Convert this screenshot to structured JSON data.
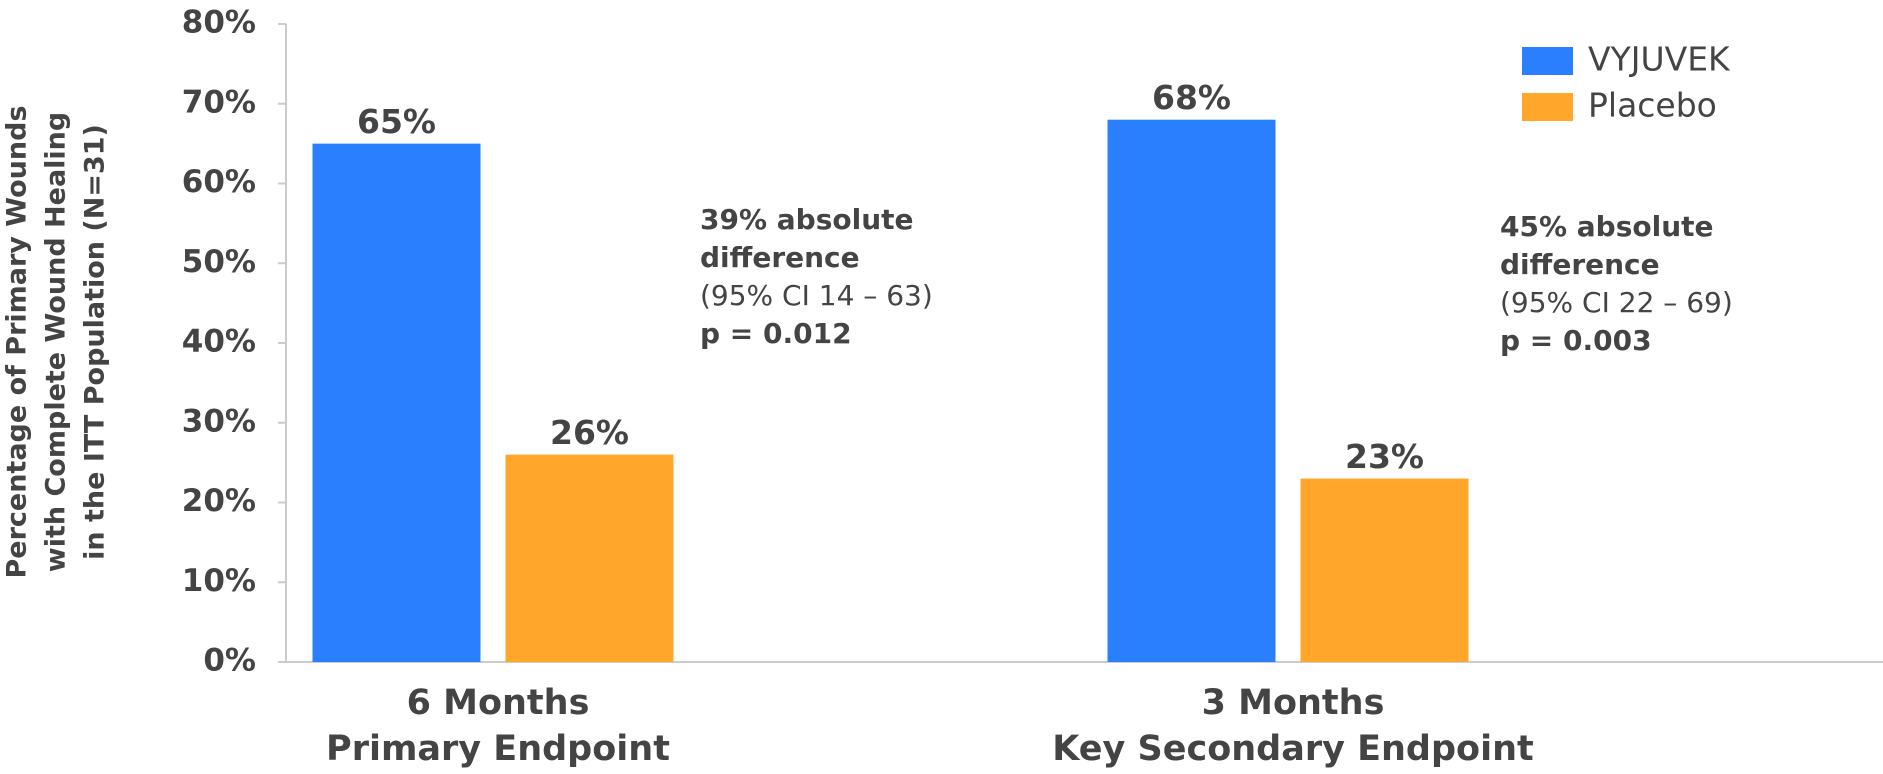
{
  "chart_data": {
    "type": "bar",
    "ylabel": [
      "Percentage of Primary Wounds",
      "with Complete Wound Healing",
      "in the ITT Population (N=31)"
    ],
    "categories": [
      [
        "6 Months",
        "Primary Endpoint"
      ],
      [
        "3 Months",
        "Key Secondary Endpoint"
      ]
    ],
    "series": [
      {
        "name": "VYJUVEK",
        "color": "#2a7fff",
        "values": [
          65,
          68
        ],
        "value_labels": [
          "65%",
          "68%"
        ]
      },
      {
        "name": "Placebo",
        "color": "#ffa62b",
        "values": [
          26,
          23
        ],
        "value_labels": [
          "26%",
          "23%"
        ]
      }
    ],
    "ylim": [
      0,
      80
    ],
    "yticks": [
      {
        "value": 0,
        "label": "0%"
      },
      {
        "value": 10,
        "label": "10%"
      },
      {
        "value": 20,
        "label": "20%"
      },
      {
        "value": 30,
        "label": "30%"
      },
      {
        "value": 40,
        "label": "40%"
      },
      {
        "value": 50,
        "label": "50%"
      },
      {
        "value": 60,
        "label": "60%"
      },
      {
        "value": 70,
        "label": "70%"
      },
      {
        "value": 80,
        "label": "80%"
      }
    ],
    "grid": false,
    "legend": "top-right",
    "annotations": [
      {
        "lines": [
          "39% absolute",
          "difference",
          "(95% CI 14 – 63)",
          "p = 0.012"
        ],
        "bold": [
          true,
          true,
          false,
          true
        ]
      },
      {
        "lines": [
          "45% absolute",
          "difference",
          "(95% CI 22 – 69)",
          "p = 0.003"
        ],
        "bold": [
          true,
          true,
          false,
          true
        ]
      }
    ]
  }
}
